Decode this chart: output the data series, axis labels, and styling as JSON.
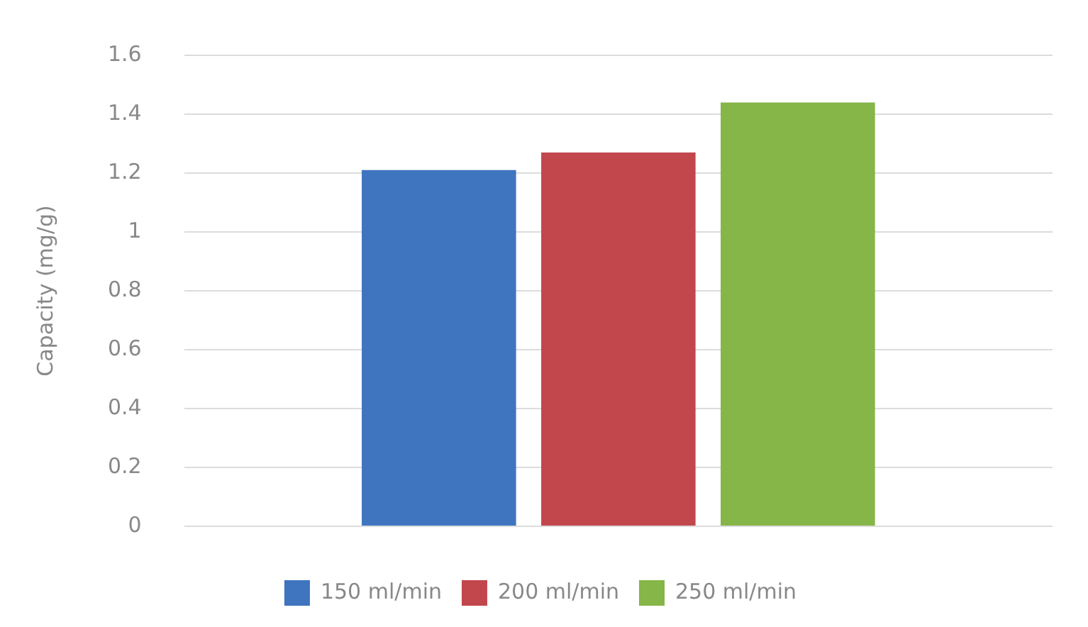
{
  "chart_data": {
    "type": "bar",
    "ylabel": "Capacity (mg/g)",
    "categories": [
      null
    ],
    "series": [
      {
        "name": "150 ml/min",
        "color": "#3f74bf",
        "values": [
          1.21
        ]
      },
      {
        "name": "200 ml/min",
        "color": "#c2474d",
        "values": [
          1.27
        ]
      },
      {
        "name": "250 ml/min",
        "color": "#86b548",
        "values": [
          1.44
        ]
      }
    ],
    "ylim": [
      0,
      1.6
    ],
    "yticks": [
      0,
      0.2,
      0.4,
      0.6,
      0.8,
      1,
      1.2,
      1.4,
      1.6
    ],
    "grid": "y",
    "legend": "bottom"
  }
}
